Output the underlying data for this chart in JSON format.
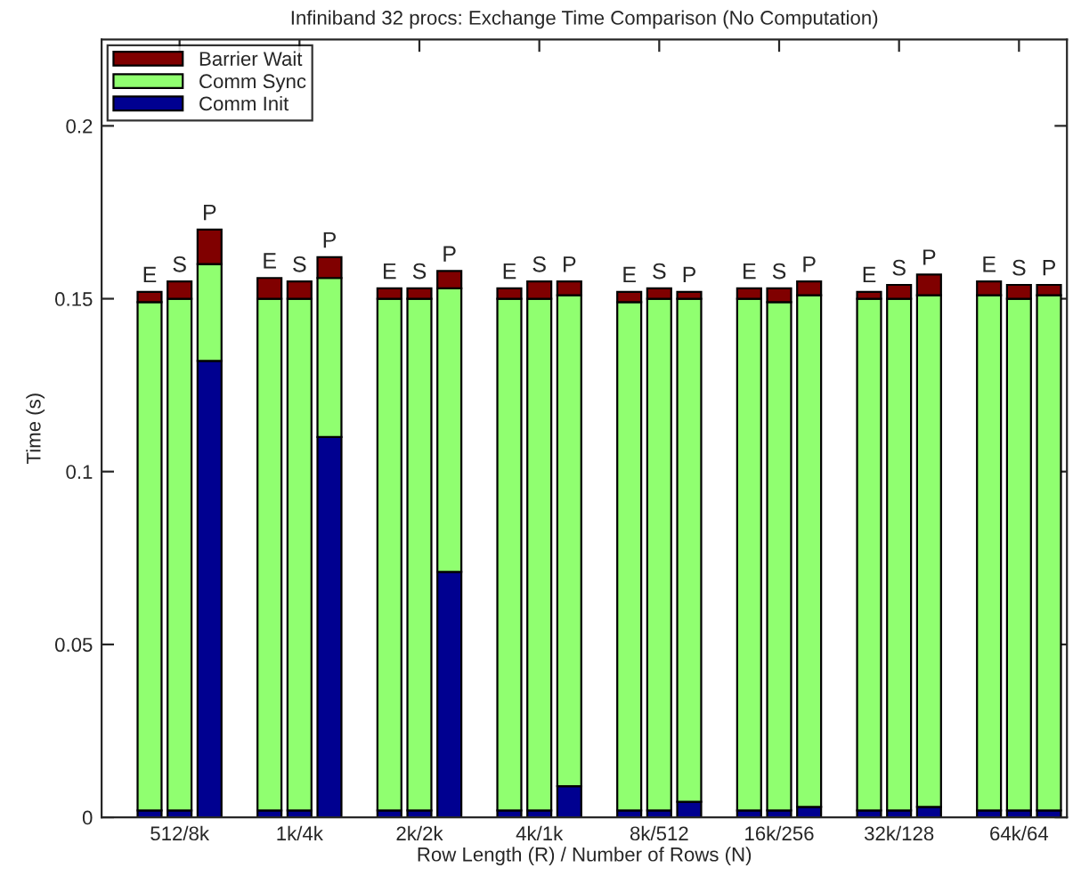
{
  "chart_data": {
    "type": "bar",
    "stacked": true,
    "title": "Infiniband 32 procs: Exchange Time Comparison (No Computation)",
    "xlabel": "Row Length (R) / Number of Rows (N)",
    "ylabel": "Time (s)",
    "categories": [
      null,
      "512/8k",
      null,
      null,
      null,
      "1k/4k",
      null,
      null,
      null,
      "2k/2k",
      null,
      null,
      null,
      "4k/1k",
      null,
      null,
      null,
      "8k/512",
      null,
      null,
      null,
      "16k/256",
      null,
      null,
      null,
      "32k/128",
      null,
      null,
      null,
      "64k/64",
      null
    ],
    "series": [
      {
        "name": "Comm Init",
        "color": "#000090",
        "values": [
          0.002,
          0.002,
          0.132,
          null,
          0.002,
          0.002,
          0.11,
          null,
          0.002,
          0.002,
          0.071,
          null,
          0.002,
          0.002,
          0.009,
          null,
          0.002,
          0.002,
          0.0045,
          null,
          0.002,
          0.002,
          0.003,
          null,
          0.002,
          0.002,
          0.003,
          null,
          0.002,
          0.002,
          0.002
        ]
      },
      {
        "name": "Comm Sync",
        "color": "#90ff70",
        "values": [
          0.147,
          0.148,
          0.028,
          null,
          0.148,
          0.148,
          0.046,
          null,
          0.148,
          0.148,
          0.082,
          null,
          0.148,
          0.148,
          0.142,
          null,
          0.147,
          0.148,
          0.1455,
          null,
          0.148,
          0.147,
          0.148,
          null,
          0.148,
          0.148,
          0.148,
          null,
          0.149,
          0.148,
          0.149
        ]
      },
      {
        "name": "Barrier Wait",
        "color": "#800000",
        "values": [
          0.003,
          0.005,
          0.01,
          null,
          0.006,
          0.005,
          0.006,
          null,
          0.003,
          0.003,
          0.005,
          null,
          0.003,
          0.005,
          0.004,
          null,
          0.003,
          0.003,
          0.002,
          null,
          0.003,
          0.004,
          0.004,
          null,
          0.002,
          0.004,
          0.006,
          null,
          0.004,
          0.004,
          0.003
        ],
        "value_labels": [
          "E",
          "S",
          "P",
          null,
          "E",
          "S",
          "P",
          null,
          "E",
          "S",
          "P",
          null,
          "E",
          "S",
          "P",
          null,
          "E",
          "S",
          "P",
          null,
          "E",
          "S",
          "P",
          null,
          "E",
          "S",
          "P",
          null,
          "E",
          "S",
          "P"
        ]
      }
    ],
    "ylim": [
      0,
      0.225
    ],
    "yticks": [
      0,
      0.05,
      0.1,
      0.15,
      0.2
    ],
    "grid": false,
    "legend": "top left"
  }
}
